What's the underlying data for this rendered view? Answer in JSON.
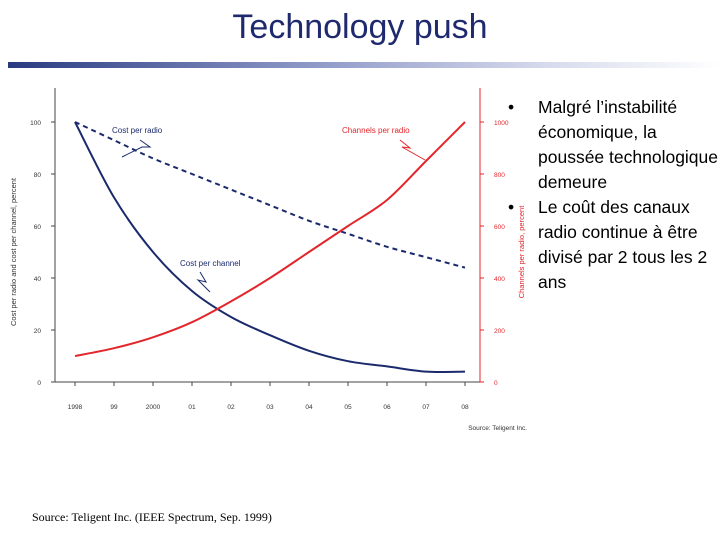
{
  "slide": {
    "title": "Technology push",
    "bullets": [
      "Malgré l’instabilité économique, la poussée technologique demeure",
      "Le coût des canaux radio continue à être divisé par 2 tous les 2 ans"
    ],
    "footer": "Source: Teligent Inc. (IEEE Spectrum, Sep. 1999)"
  },
  "chart_data": {
    "type": "line",
    "title": "",
    "source_note": "Source: Teligent Inc.",
    "categories": [
      "1998",
      "99",
      "2000",
      "01",
      "02",
      "03",
      "04",
      "05",
      "06",
      "07",
      "08"
    ],
    "xlabel": "",
    "ylabel_left": "Cost per radio and cost per channel, percent",
    "ylabel_right": "Channels per radio, percent",
    "ylim_left": [
      0,
      100
    ],
    "yticks_left": [
      "0",
      "20",
      "40",
      "60",
      "80",
      "100"
    ],
    "ylim_right": [
      0,
      1000
    ],
    "yticks_right": [
      "0",
      "200",
      "400",
      "600",
      "800",
      "1000"
    ],
    "series": [
      {
        "name": "Cost per radio",
        "axis": "left",
        "style": "dashed",
        "color": "#1a2a6c",
        "values": [
          100,
          93,
          86,
          80,
          74,
          68,
          62,
          57,
          52,
          48,
          44
        ]
      },
      {
        "name": "Cost per channel",
        "axis": "left",
        "style": "solid",
        "color": "#1a2a6c",
        "values": [
          100,
          71,
          50,
          35,
          25,
          18,
          12,
          8,
          6,
          4,
          4
        ]
      },
      {
        "name": "Channels per radio",
        "axis": "right",
        "style": "solid",
        "color": "#e3262b",
        "values": [
          100,
          130,
          172,
          230,
          310,
          400,
          500,
          600,
          700,
          850,
          1000
        ]
      }
    ],
    "labels": {
      "cost_per_radio": "Cost per radio",
      "cost_per_channel": "Cost per channel",
      "channels_per_radio_1": "Channels per radio"
    }
  }
}
